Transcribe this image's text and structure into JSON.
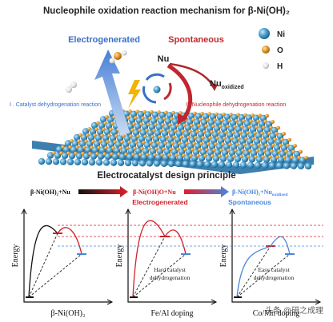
{
  "header": {
    "title": "Nucleophile oxidation reaction mechanism for β-Ni(OH)₂"
  },
  "mechanism": {
    "electrogenerated": "Electrogenerated",
    "spontaneous": "Spontaneous",
    "nu": "Nu",
    "nu_oxidized": {
      "base": "Nu",
      "sub": "oxidized"
    },
    "step_1": "I . Catalyst dehydrogenation reaction",
    "step_2": "II. Nucleophile dehydrogenation reaction",
    "legend": [
      "Ni",
      "O",
      "H"
    ]
  },
  "design": {
    "title": "Electrocatalyst design principle",
    "state_1": "β-Ni(OH)₂+Nu",
    "state_2": "β-Ni(OH)O+Nu",
    "state_3": {
      "base": "β-Ni(OH)₂+Nu",
      "sub": "oxidized"
    },
    "electrogenerated": "Electrogenerated",
    "spontaneous": "Spontaneous"
  },
  "panels": [
    {
      "y_label": "Energy",
      "x_label": "β-Ni(OH)₂"
    },
    {
      "y_label": "Energy",
      "x_label": "Fe/Al doping",
      "note": [
        "Hard catalyst",
        "dehydrogenation"
      ]
    },
    {
      "y_label": "Energy",
      "x_label": "Co/Mn doping",
      "note": [
        "Easy catalyst",
        "dehydrogenation"
      ]
    }
  ],
  "watermark": "头条 @研之成理"
}
